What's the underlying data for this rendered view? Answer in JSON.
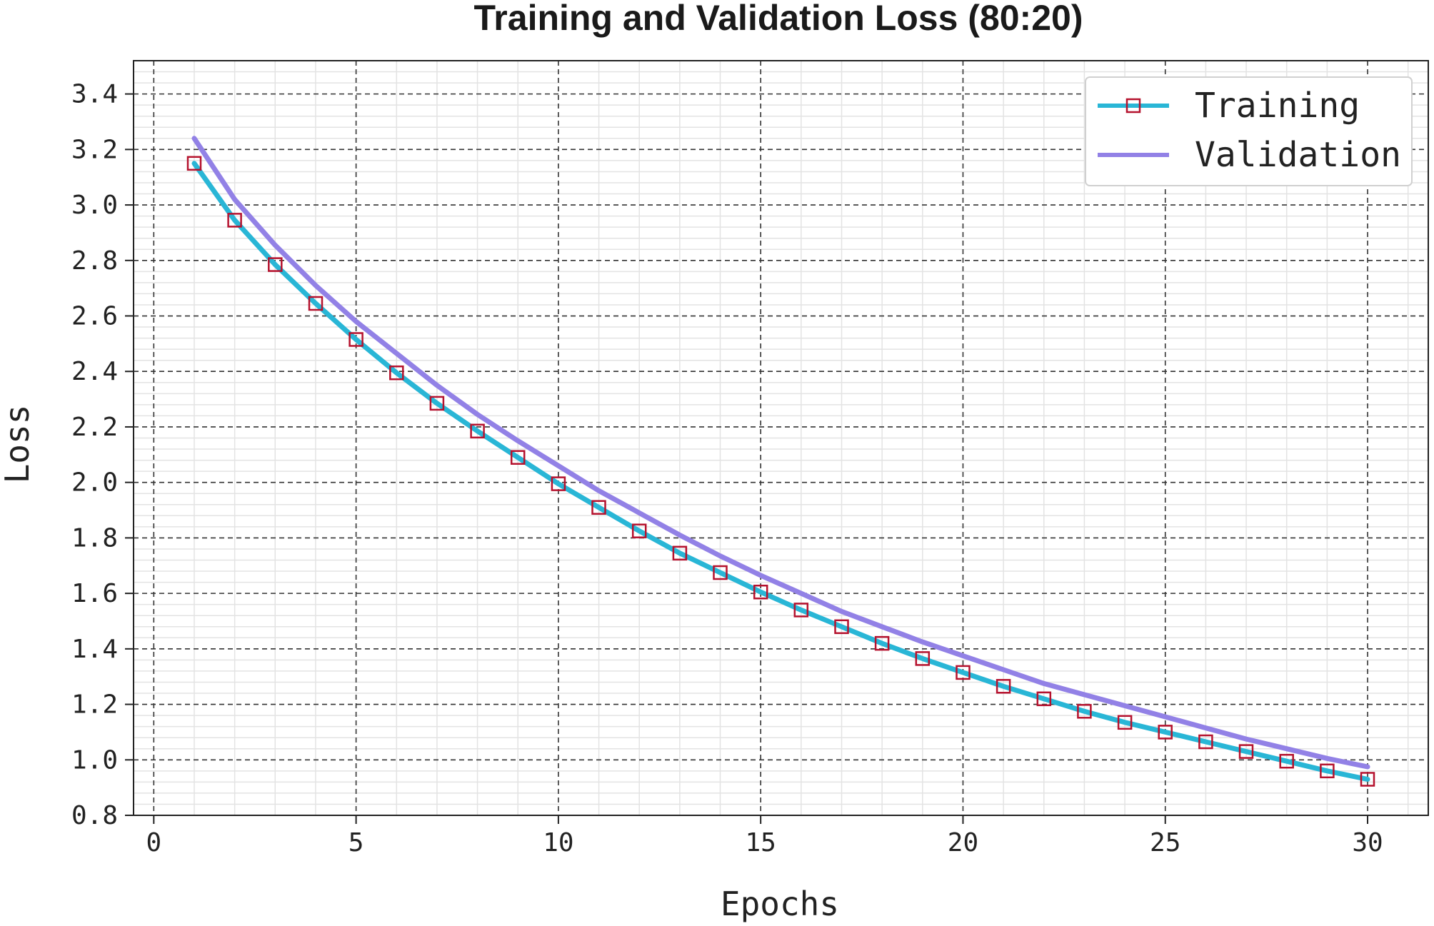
{
  "chart_data": {
    "type": "line",
    "title": "Training and Validation Loss (80:20)",
    "xlabel": "Epochs",
    "ylabel": "Loss",
    "xlim": [
      -0.5,
      31.5
    ],
    "ylim": [
      0.8,
      3.52
    ],
    "xticks": [
      0,
      5,
      10,
      15,
      20,
      25,
      30
    ],
    "xtick_labels": [
      "0",
      "5",
      "10",
      "15",
      "20",
      "25",
      "30"
    ],
    "yticks": [
      0.8,
      1.0,
      1.2,
      1.4,
      1.6,
      1.8,
      2.0,
      2.2,
      2.4,
      2.6,
      2.8,
      3.0,
      3.2,
      3.4
    ],
    "ytick_labels": [
      "0.8",
      "1.0",
      "1.2",
      "1.4",
      "1.6",
      "1.8",
      "2.0",
      "2.2",
      "2.4",
      "2.6",
      "2.8",
      "3.0",
      "3.2",
      "3.4"
    ],
    "grid": true,
    "legend_position": "top-right",
    "x": [
      1,
      2,
      3,
      4,
      5,
      6,
      7,
      8,
      9,
      10,
      11,
      12,
      13,
      14,
      15,
      16,
      17,
      18,
      19,
      20,
      21,
      22,
      23,
      24,
      25,
      26,
      27,
      28,
      29,
      30
    ],
    "series": [
      {
        "name": "Training",
        "color": "#29b6d6",
        "marker": "square",
        "marker_color": "#b5122e",
        "values": [
          3.15,
          2.945,
          2.785,
          2.645,
          2.515,
          2.395,
          2.285,
          2.185,
          2.09,
          1.995,
          1.91,
          1.825,
          1.745,
          1.675,
          1.605,
          1.54,
          1.48,
          1.42,
          1.365,
          1.315,
          1.265,
          1.22,
          1.175,
          1.135,
          1.1,
          1.065,
          1.03,
          0.995,
          0.96,
          0.93
        ]
      },
      {
        "name": "Validation",
        "color": "#9281e6",
        "marker": "none",
        "values": [
          3.24,
          3.02,
          2.855,
          2.71,
          2.58,
          2.465,
          2.35,
          2.245,
          2.15,
          2.06,
          1.97,
          1.89,
          1.81,
          1.735,
          1.665,
          1.6,
          1.535,
          1.48,
          1.425,
          1.375,
          1.325,
          1.275,
          1.235,
          1.195,
          1.155,
          1.115,
          1.075,
          1.04,
          1.005,
          0.975
        ]
      }
    ]
  }
}
